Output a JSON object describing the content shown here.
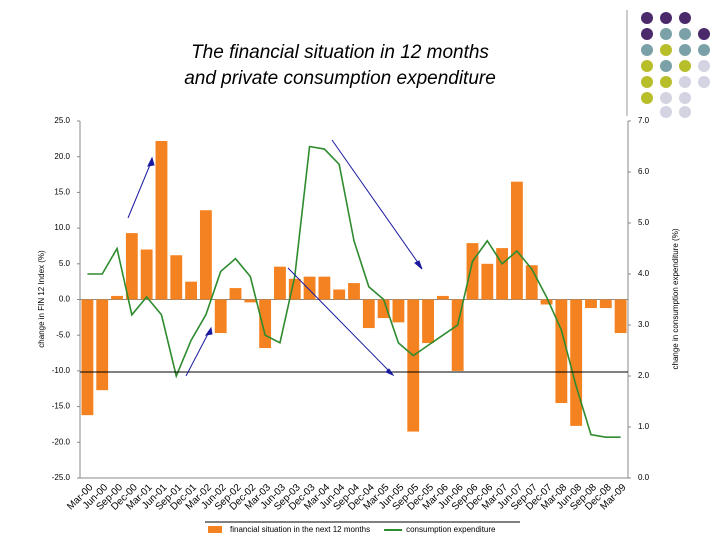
{
  "chart_data": {
    "type": "bar_line",
    "title": [
      "The financial situation in 12 months",
      "and private consumption expenditure"
    ],
    "y_label": "change in FIN 12 Index (%)",
    "y2_label": "change in consumption expenditure (%)",
    "categories": [
      "Mar-00",
      "Jun-00",
      "Sep-00",
      "Dec-00",
      "Mar-01",
      "Jun-01",
      "Sep-01",
      "Dec-01",
      "Mar-02",
      "Jun-02",
      "Sep-02",
      "Dec-02",
      "Mar-03",
      "Jun-03",
      "Sep-03",
      "Dec-03",
      "Mar-04",
      "Jun-04",
      "Sep-04",
      "Dec-04",
      "Mar-05",
      "Jun-05",
      "Sep-05",
      "Dec-05",
      "Mar-06",
      "Jun-06",
      "Sep-06",
      "Dec-06",
      "Mar-07",
      "Jun-07",
      "Sep-07",
      "Dec-07",
      "Mar-08",
      "Jun-08",
      "Sep-08",
      "Dec-08",
      "Mar-09"
    ],
    "series": [
      {
        "name": "financial situation in the next 12 months",
        "color": "#f58220",
        "kind": "bar",
        "values": [
          -16.2,
          -12.7,
          0.5,
          9.3,
          7.0,
          22.2,
          6.2,
          2.5,
          12.5,
          -4.7,
          1.6,
          -0.4,
          -6.8,
          4.6,
          2.9,
          3.2,
          3.2,
          1.4,
          2.3,
          -4.0,
          -2.6,
          -3.2,
          -18.5,
          -6.1,
          0.5,
          -10.0,
          7.9,
          5.0,
          7.2,
          16.5,
          4.8,
          -0.7,
          -14.5,
          -17.7,
          -1.2,
          -1.2,
          -4.7
        ]
      },
      {
        "name": "consumption expenditure",
        "color": "#2e8b2e",
        "kind": "line",
        "axis": "y2",
        "values": [
          4.0,
          4.0,
          4.5,
          3.2,
          3.55,
          3.2,
          2.0,
          2.7,
          3.2,
          4.05,
          4.3,
          3.95,
          2.8,
          2.65,
          3.95,
          6.5,
          6.45,
          6.15,
          4.65,
          3.75,
          3.5,
          2.65,
          2.4,
          2.6,
          2.8,
          3.0,
          4.25,
          4.65,
          4.2,
          4.45,
          4.1,
          3.55,
          2.9,
          1.8,
          0.85,
          0.8,
          0.8
        ]
      }
    ],
    "ylim": [
      -25,
      25
    ],
    "yticks": [
      {
        "value": 25,
        "label": "25.0"
      },
      {
        "value": 20,
        "label": "20.0"
      },
      {
        "value": 15,
        "label": "15.0"
      },
      {
        "value": 10,
        "label": "10.0"
      },
      {
        "value": 5,
        "label": "5.0"
      },
      {
        "value": 0,
        "label": "0.0"
      },
      {
        "value": -5,
        "label": "-5.0"
      },
      {
        "value": -10,
        "label": "-10.0"
      },
      {
        "value": -15,
        "label": "-15.0"
      },
      {
        "value": -20,
        "label": "-20.0"
      },
      {
        "value": -25,
        "label": "-25.0"
      }
    ],
    "y2lim": [
      0,
      7
    ],
    "y2ticks": [
      {
        "value": 7,
        "label": "7.0"
      },
      {
        "value": 6,
        "label": "6.0"
      },
      {
        "value": 5,
        "label": "5.0"
      },
      {
        "value": 4,
        "label": "4.0"
      },
      {
        "value": 3,
        "label": "3.0"
      },
      {
        "value": 2,
        "label": "2.0"
      },
      {
        "value": 1,
        "label": "1.0"
      },
      {
        "value": 0,
        "label": "0.0"
      }
    ],
    "legend": "bottom"
  }
}
